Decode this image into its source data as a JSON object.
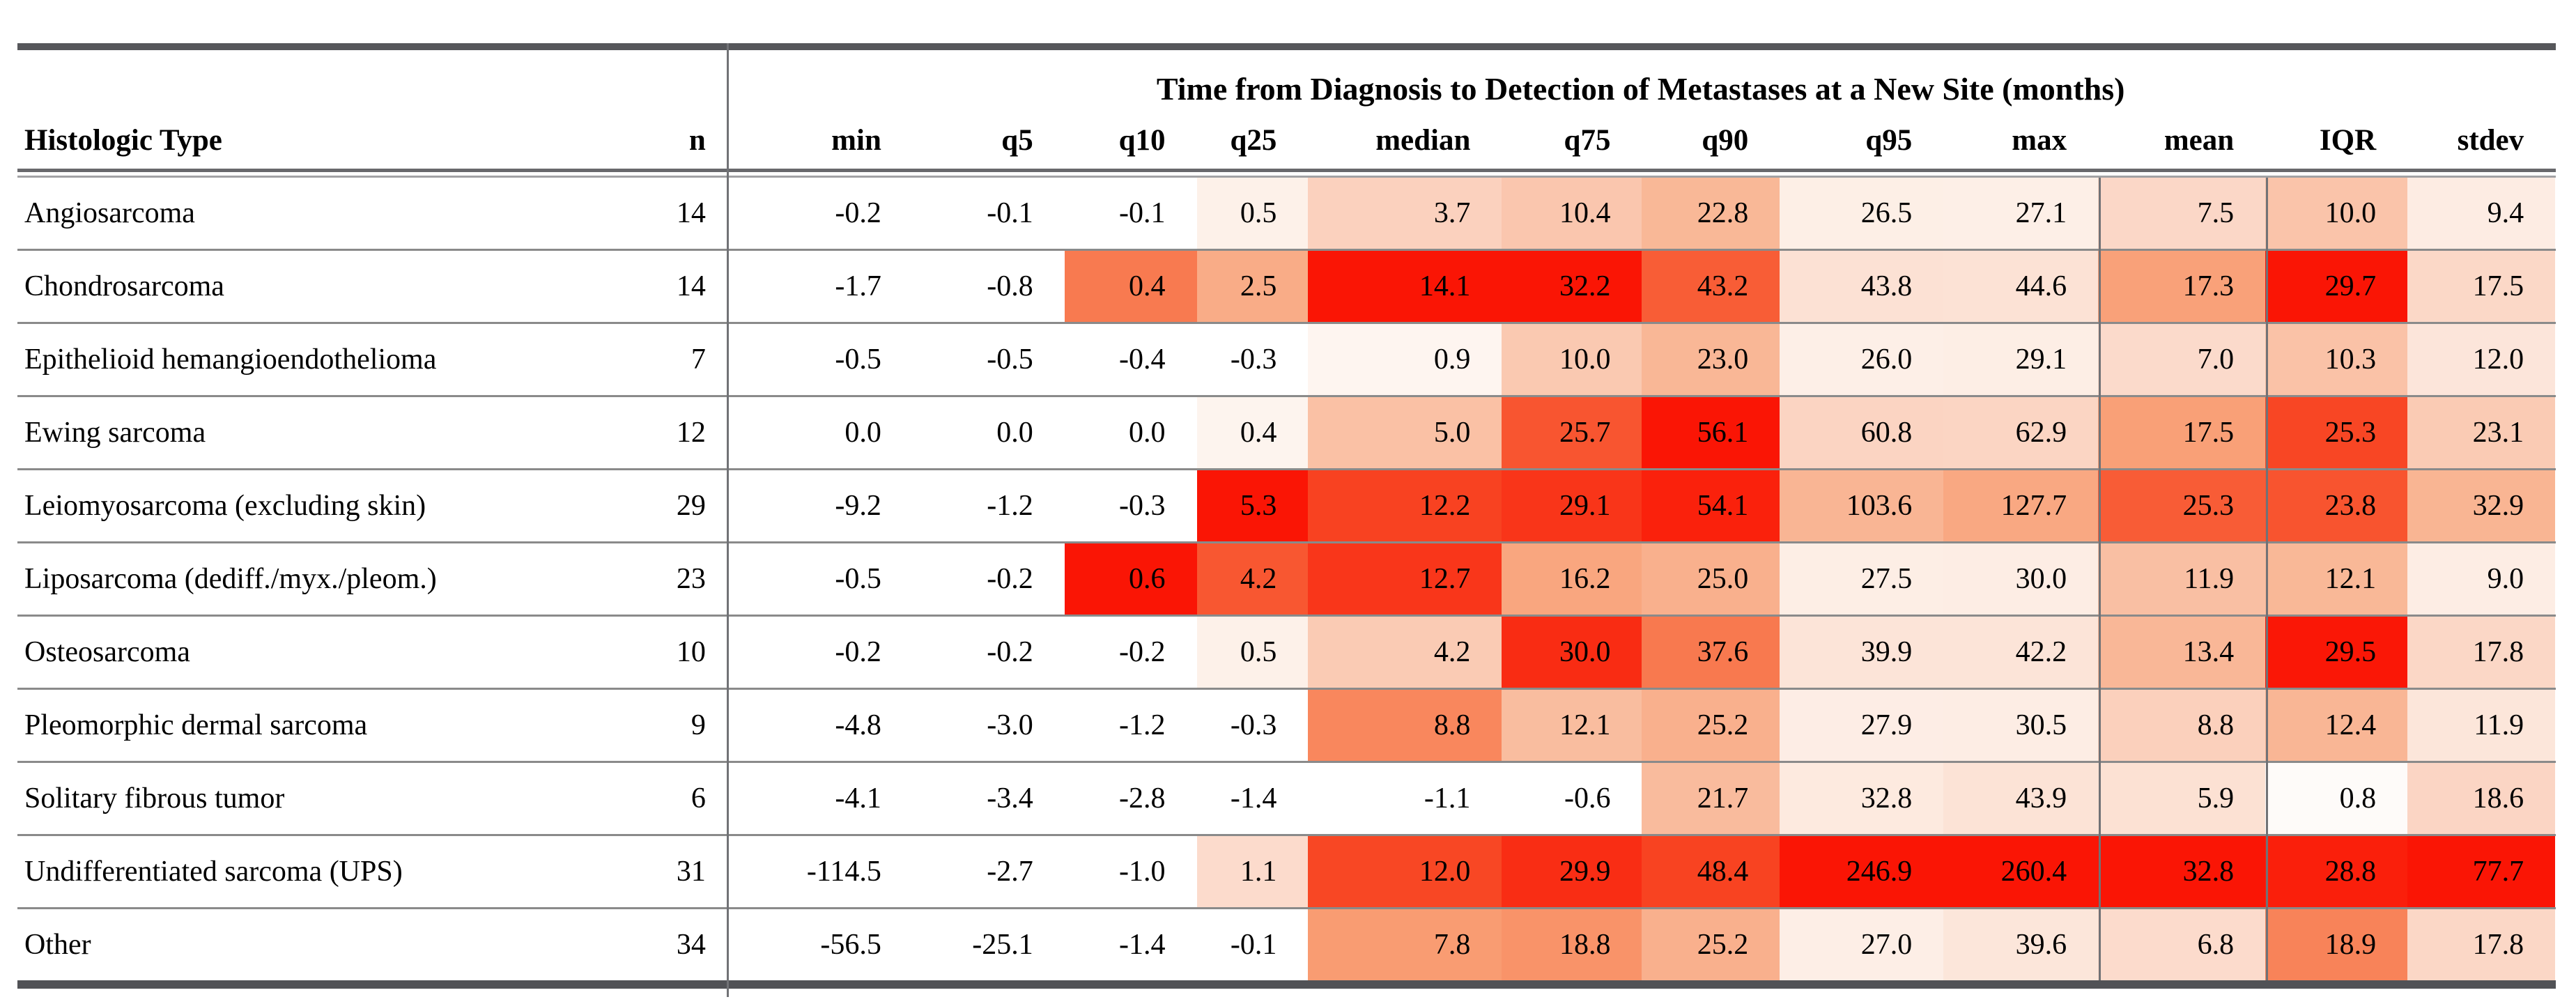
{
  "table": {
    "title": "Time from Diagnosis to Detection of Metastases at a New Site (months)",
    "row_header_label": "Histologic Type",
    "n_label": "n",
    "stat_columns": [
      "min",
      "q5",
      "q10",
      "q25",
      "median",
      "q75",
      "q90",
      "q95",
      "max",
      "mean",
      "IQR",
      "stdev"
    ],
    "rows": [
      {
        "name": "Angiosarcoma",
        "n": 14,
        "values": [
          -0.2,
          -0.1,
          -0.1,
          0.5,
          3.7,
          10.4,
          22.8,
          26.5,
          27.1,
          7.5,
          10.0,
          9.4
        ]
      },
      {
        "name": "Chondrosarcoma",
        "n": 14,
        "values": [
          -1.7,
          -0.8,
          0.4,
          2.5,
          14.1,
          32.2,
          43.2,
          43.8,
          44.6,
          17.3,
          29.7,
          17.5
        ]
      },
      {
        "name": "Epithelioid hemangioendothelioma",
        "n": 7,
        "values": [
          -0.5,
          -0.5,
          -0.4,
          -0.3,
          0.9,
          10.0,
          23.0,
          26.0,
          29.1,
          7.0,
          10.3,
          12.0
        ]
      },
      {
        "name": "Ewing sarcoma",
        "n": 12,
        "values": [
          0.0,
          0.0,
          0.0,
          0.4,
          5.0,
          25.7,
          56.1,
          60.8,
          62.9,
          17.5,
          25.3,
          23.1
        ]
      },
      {
        "name": "Leiomyosarcoma (excluding skin)",
        "n": 29,
        "values": [
          -9.2,
          -1.2,
          -0.3,
          5.3,
          12.2,
          29.1,
          54.1,
          103.6,
          127.7,
          25.3,
          23.8,
          32.9
        ]
      },
      {
        "name": "Liposarcoma (dediff./myx./pleom.)",
        "n": 23,
        "values": [
          -0.5,
          -0.2,
          0.6,
          4.2,
          12.7,
          16.2,
          25.0,
          27.5,
          30.0,
          11.9,
          12.1,
          9.0
        ]
      },
      {
        "name": "Osteosarcoma",
        "n": 10,
        "values": [
          -0.2,
          -0.2,
          -0.2,
          0.5,
          4.2,
          30.0,
          37.6,
          39.9,
          42.2,
          13.4,
          29.5,
          17.8
        ]
      },
      {
        "name": "Pleomorphic dermal sarcoma",
        "n": 9,
        "values": [
          -4.8,
          -3.0,
          -1.2,
          -0.3,
          8.8,
          12.1,
          25.2,
          27.9,
          30.5,
          8.8,
          12.4,
          11.9
        ]
      },
      {
        "name": "Solitary fibrous tumor",
        "n": 6,
        "values": [
          -4.1,
          -3.4,
          -2.8,
          -1.4,
          -1.1,
          -0.6,
          21.7,
          32.8,
          43.9,
          5.9,
          0.8,
          18.6
        ]
      },
      {
        "name": "Undifferentiated sarcoma (UPS)",
        "n": 31,
        "values": [
          -114.5,
          -2.7,
          -1.0,
          1.1,
          12.0,
          29.9,
          48.4,
          246.9,
          260.4,
          32.8,
          28.8,
          77.7
        ]
      },
      {
        "name": "Other",
        "n": 34,
        "values": [
          -56.5,
          -25.1,
          -1.4,
          -0.1,
          7.8,
          18.8,
          25.2,
          27.0,
          39.6,
          6.8,
          18.9,
          17.8
        ]
      }
    ]
  },
  "heatmap": {
    "description": "Each stat column is shaded independently: white for values <= 0, linear ramp to full red at the column maximum.",
    "stops": [
      [
        0.0,
        "#ffffff"
      ],
      [
        0.1,
        "#fdf0e8"
      ],
      [
        0.25,
        "#fbd3c1"
      ],
      [
        0.4,
        "#f9b999"
      ],
      [
        0.55,
        "#f99d73"
      ],
      [
        0.7,
        "#f87046"
      ],
      [
        0.85,
        "#f84724"
      ],
      [
        1.0,
        "#fa1505"
      ]
    ],
    "max_color": "#fa1505"
  },
  "chart_data": {
    "type": "heatmap",
    "title": "Time from Diagnosis to Detection of Metastases at a New Site (months)",
    "x_labels": [
      "min",
      "q5",
      "q10",
      "q25",
      "median",
      "q75",
      "q90",
      "q95",
      "max",
      "mean",
      "IQR",
      "stdev"
    ],
    "y_labels": [
      "Angiosarcoma",
      "Chondrosarcoma",
      "Epithelioid hemangioendothelioma",
      "Ewing sarcoma",
      "Leiomyosarcoma (excluding skin)",
      "Liposarcoma (dediff./myx./pleom.)",
      "Osteosarcoma",
      "Pleomorphic dermal sarcoma",
      "Solitary fibrous tumor",
      "Undifferentiated sarcoma (UPS)",
      "Other"
    ],
    "n_per_row": [
      14,
      14,
      7,
      12,
      29,
      23,
      10,
      9,
      6,
      31,
      34
    ],
    "values": [
      [
        -0.2,
        -0.1,
        -0.1,
        0.5,
        3.7,
        10.4,
        22.8,
        26.5,
        27.1,
        7.5,
        10.0,
        9.4
      ],
      [
        -1.7,
        -0.8,
        0.4,
        2.5,
        14.1,
        32.2,
        43.2,
        43.8,
        44.6,
        17.3,
        29.7,
        17.5
      ],
      [
        -0.5,
        -0.5,
        -0.4,
        -0.3,
        0.9,
        10.0,
        23.0,
        26.0,
        29.1,
        7.0,
        10.3,
        12.0
      ],
      [
        0.0,
        0.0,
        0.0,
        0.4,
        5.0,
        25.7,
        56.1,
        60.8,
        62.9,
        17.5,
        25.3,
        23.1
      ],
      [
        -9.2,
        -1.2,
        -0.3,
        5.3,
        12.2,
        29.1,
        54.1,
        103.6,
        127.7,
        25.3,
        23.8,
        32.9
      ],
      [
        -0.5,
        -0.2,
        0.6,
        4.2,
        12.7,
        16.2,
        25.0,
        27.5,
        30.0,
        11.9,
        12.1,
        9.0
      ],
      [
        -0.2,
        -0.2,
        -0.2,
        0.5,
        4.2,
        30.0,
        37.6,
        39.9,
        42.2,
        13.4,
        29.5,
        17.8
      ],
      [
        -4.8,
        -3.0,
        -1.2,
        -0.3,
        8.8,
        12.1,
        25.2,
        27.9,
        30.5,
        8.8,
        12.4,
        11.9
      ],
      [
        -4.1,
        -3.4,
        -2.8,
        -1.4,
        -1.1,
        -0.6,
        21.7,
        32.8,
        43.9,
        5.9,
        0.8,
        18.6
      ],
      [
        -114.5,
        -2.7,
        -1.0,
        1.1,
        12.0,
        29.9,
        48.4,
        246.9,
        260.4,
        32.8,
        28.8,
        77.7
      ],
      [
        -56.5,
        -25.1,
        -1.4,
        -0.1,
        7.8,
        18.8,
        25.2,
        27.0,
        39.6,
        6.8,
        18.9,
        17.8
      ]
    ]
  }
}
